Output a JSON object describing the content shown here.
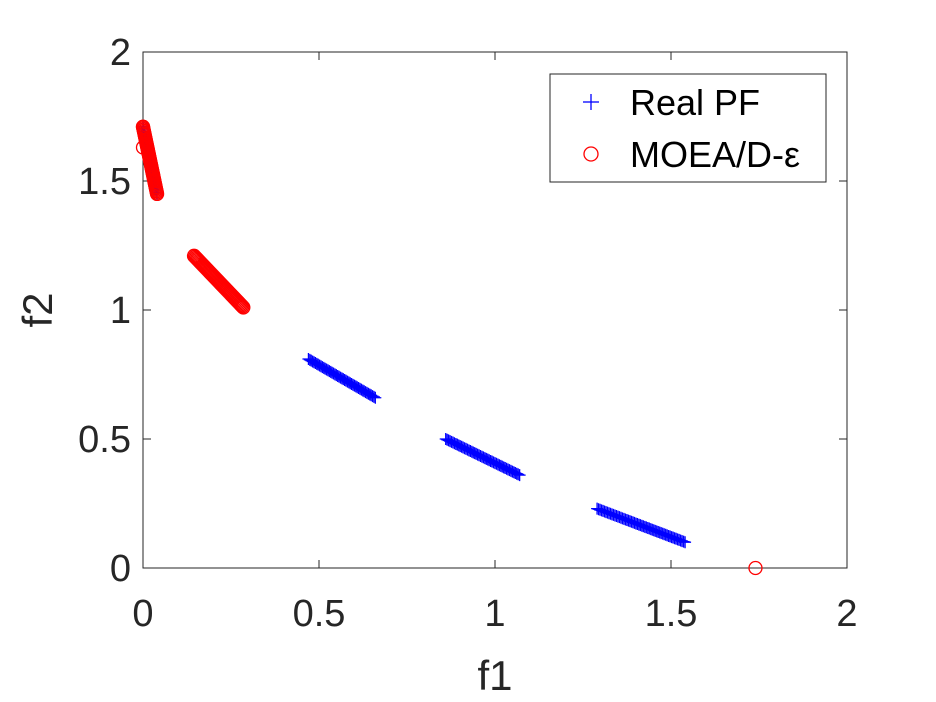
{
  "chart_data": {
    "type": "scatter",
    "title": "",
    "xlabel": "f1",
    "ylabel": "f2",
    "xlim": [
      0,
      2
    ],
    "ylim": [
      0,
      2
    ],
    "xticks": [
      "0",
      "0.5",
      "1",
      "1.5",
      "2"
    ],
    "yticks": [
      "0",
      "0.5",
      "1",
      "1.5",
      "2"
    ],
    "grid": false,
    "legend_position": "top-right",
    "series": [
      {
        "name": "Real PF",
        "marker": "plus",
        "color": "#0000ff",
        "segments": [
          {
            "x_start": 0.0,
            "y_start": 1.71,
            "x_end": 0.04,
            "y_end": 1.45
          },
          {
            "x_start": 0.47,
            "y_start": 0.81,
            "x_end": 0.66,
            "y_end": 0.66
          },
          {
            "x_start": 0.86,
            "y_start": 0.5,
            "x_end": 1.07,
            "y_end": 0.36
          },
          {
            "x_start": 1.29,
            "y_start": 0.23,
            "x_end": 1.54,
            "y_end": 0.1
          }
        ]
      },
      {
        "name": "MOEA/D-ε",
        "marker": "circle",
        "color": "#ff0000",
        "segments": [
          {
            "x_start": 0.0,
            "y_start": 1.71,
            "x_end": 0.04,
            "y_end": 1.45
          },
          {
            "x_start": 0.145,
            "y_start": 1.21,
            "x_end": 0.285,
            "y_end": 1.01
          }
        ],
        "points": [
          {
            "x": 0.0,
            "y": 1.71
          },
          {
            "x": 0.0,
            "y": 1.63
          },
          {
            "x": 1.74,
            "y": 0.0
          }
        ]
      }
    ]
  }
}
